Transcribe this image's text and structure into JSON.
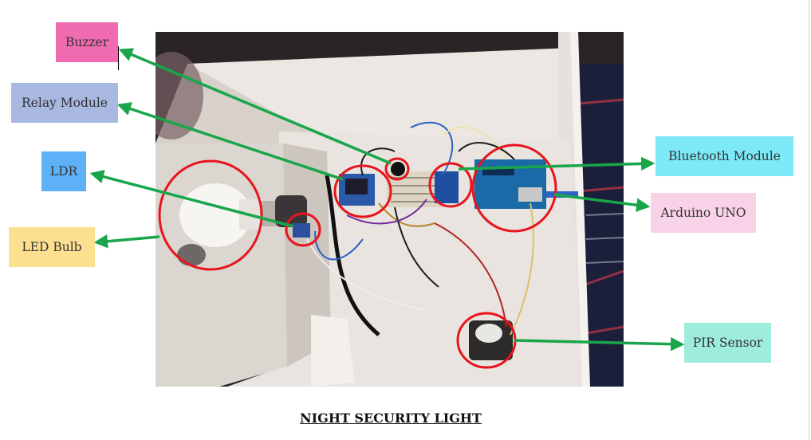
{
  "labels": {
    "buzzer": "Buzzer",
    "relay_module": "Relay Module",
    "ldr": "LDR",
    "led_bulb": "LED Bulb",
    "bluetooth_module": "Bluetooth Module",
    "arduino_uno": "Arduino UNO",
    "pir_sensor": "PIR Sensor"
  },
  "caption": "NIGHT SECURITY LIGHT",
  "colors": {
    "arrow": "#19a64a",
    "highlight_circle": "#e8141c",
    "buzzer_box": "#f06bb0",
    "relay_box": "#a8b8e0",
    "ldr_box": "#5fb1f7",
    "led_box": "#fde08f",
    "bluetooth_box": "#7de9f8",
    "arduino_box": "#f8d2e6",
    "pir_box": "#9eecdc"
  }
}
